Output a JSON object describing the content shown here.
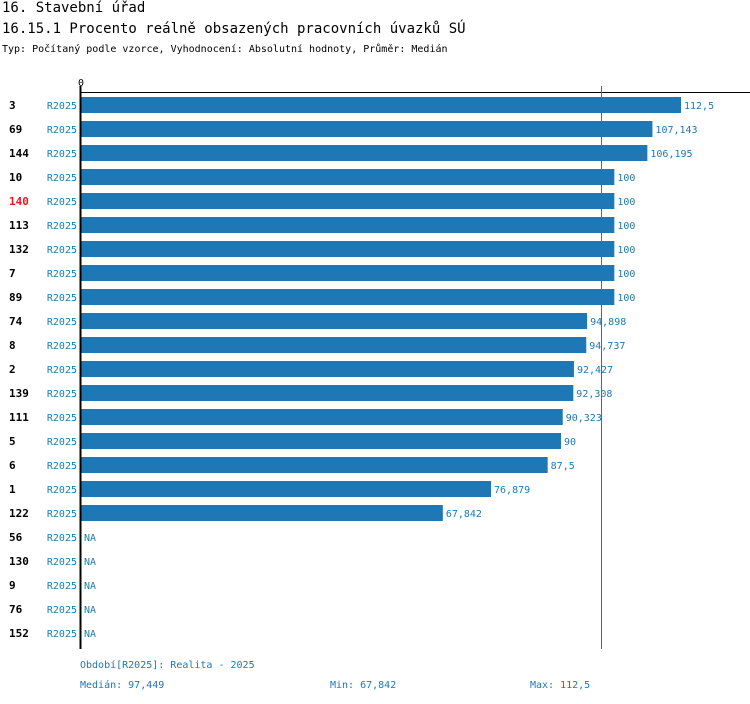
{
  "header": {
    "title": "16. Stavební úřad",
    "subtitle": "16.15.1 Procento reálně obsazených pracovních úvazků SÚ",
    "type_line": "Typ: Počítaný podle vzorce, Vyhodnocení: Absolutní hodnoty, Průměr: Medián"
  },
  "chart_data": {
    "type": "bar",
    "orientation": "horizontal",
    "title": "16.15.1 Procento reálně obsazených pracovních úvazků SÚ",
    "x_tick_label": "0",
    "xlim": [
      0,
      112.5
    ],
    "reference_line": {
      "name": "Medián",
      "value": 97.449
    },
    "series_label": "R2025",
    "na_label": "NA",
    "highlight_color": "#e31a1c",
    "bar_color": "#1f77b4",
    "rows": [
      {
        "id": "3",
        "period": "R2025",
        "value": 112.5,
        "label": "112,5",
        "highlight": false
      },
      {
        "id": "69",
        "period": "R2025",
        "value": 107.143,
        "label": "107,143",
        "highlight": false
      },
      {
        "id": "144",
        "period": "R2025",
        "value": 106.195,
        "label": "106,195",
        "highlight": false
      },
      {
        "id": "10",
        "period": "R2025",
        "value": 100,
        "label": "100",
        "highlight": false
      },
      {
        "id": "140",
        "period": "R2025",
        "value": 100,
        "label": "100",
        "highlight": true
      },
      {
        "id": "113",
        "period": "R2025",
        "value": 100,
        "label": "100",
        "highlight": false
      },
      {
        "id": "132",
        "period": "R2025",
        "value": 100,
        "label": "100",
        "highlight": false
      },
      {
        "id": "7",
        "period": "R2025",
        "value": 100,
        "label": "100",
        "highlight": false
      },
      {
        "id": "89",
        "period": "R2025",
        "value": 100,
        "label": "100",
        "highlight": false
      },
      {
        "id": "74",
        "period": "R2025",
        "value": 94.898,
        "label": "94,898",
        "highlight": false
      },
      {
        "id": "8",
        "period": "R2025",
        "value": 94.737,
        "label": "94,737",
        "highlight": false
      },
      {
        "id": "2",
        "period": "R2025",
        "value": 92.427,
        "label": "92,427",
        "highlight": false
      },
      {
        "id": "139",
        "period": "R2025",
        "value": 92.308,
        "label": "92,308",
        "highlight": false
      },
      {
        "id": "111",
        "period": "R2025",
        "value": 90.323,
        "label": "90,323",
        "highlight": false
      },
      {
        "id": "5",
        "period": "R2025",
        "value": 90,
        "label": "90",
        "highlight": false
      },
      {
        "id": "6",
        "period": "R2025",
        "value": 87.5,
        "label": "87,5",
        "highlight": false
      },
      {
        "id": "1",
        "period": "R2025",
        "value": 76.879,
        "label": "76,879",
        "highlight": false
      },
      {
        "id": "122",
        "period": "R2025",
        "value": 67.842,
        "label": "67,842",
        "highlight": false
      },
      {
        "id": "56",
        "period": "R2025",
        "value": null,
        "label": "NA",
        "highlight": false
      },
      {
        "id": "130",
        "period": "R2025",
        "value": null,
        "label": "NA",
        "highlight": false
      },
      {
        "id": "9",
        "period": "R2025",
        "value": null,
        "label": "NA",
        "highlight": false
      },
      {
        "id": "76",
        "period": "R2025",
        "value": null,
        "label": "NA",
        "highlight": false
      },
      {
        "id": "152",
        "period": "R2025",
        "value": null,
        "label": "NA",
        "highlight": false
      }
    ]
  },
  "footer": {
    "period": "Období[R2025]: Realita - 2025",
    "median": "Medián: 97,449",
    "min": "Min: 67,842",
    "max": "Max: 112,5"
  }
}
